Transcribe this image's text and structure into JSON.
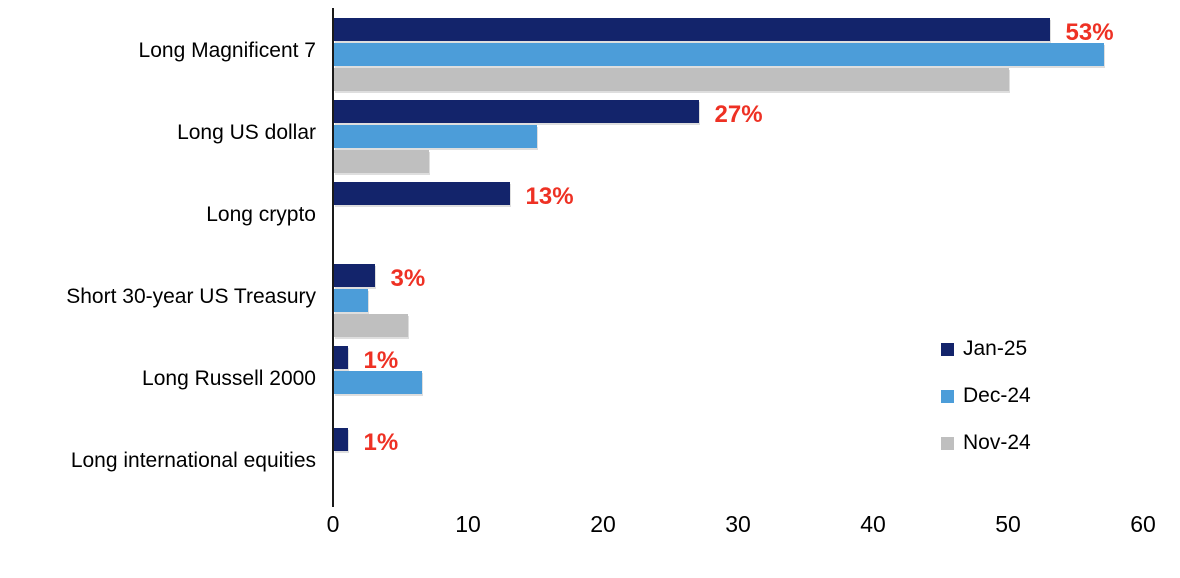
{
  "chart_data": {
    "type": "bar",
    "orientation": "horizontal",
    "title": "",
    "xlabel": "",
    "ylabel": "",
    "categories": [
      "Long Magnificent 7",
      "Long US dollar",
      "Long crypto",
      "Short 30-year US Treasury",
      "Long Russell 2000",
      "Long international equities"
    ],
    "series": [
      {
        "name": "Jan-25",
        "color": "#13246b",
        "values": [
          53,
          27,
          13,
          3,
          1,
          1
        ]
      },
      {
        "name": "Dec-24",
        "color": "#4c9dd9",
        "values": [
          57,
          15,
          0,
          2.5,
          6.5,
          0
        ]
      },
      {
        "name": "Nov-24",
        "color": "#bfbfbf",
        "values": [
          50,
          7,
          0,
          5.5,
          0,
          0
        ]
      }
    ],
    "data_labels": {
      "on_series": "Jan-25",
      "values": [
        "53%",
        "27%",
        "13%",
        "3%",
        "1%",
        "1%"
      ],
      "color": "#ee3124"
    },
    "x_ticks": [
      "0",
      "10",
      "20",
      "30",
      "40",
      "50",
      "60"
    ],
    "xlim": [
      0,
      60
    ],
    "grid": false,
    "legend_position": "right-middle",
    "axis_color": "#1a1a1a"
  }
}
